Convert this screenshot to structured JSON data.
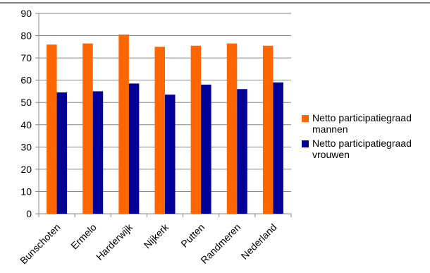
{
  "chart_data": {
    "type": "bar",
    "categories": [
      "Bunschoten",
      "Ermelo",
      "Harderwijk",
      "Nijkerk",
      "Putten",
      "Randmeren",
      "Nederland"
    ],
    "series": [
      {
        "name": "Netto participatiegraad mannen",
        "name_lines": [
          "Netto participatiegraad",
          "mannen"
        ],
        "color": "#FF6600",
        "values": [
          76,
          76.5,
          80.5,
          75,
          75.5,
          76.5,
          75.5
        ]
      },
      {
        "name": "Netto participatiegraad vrouwen",
        "name_lines": [
          "Netto participatiegraad",
          "vrouwen"
        ],
        "color": "#000099",
        "values": [
          54.5,
          55,
          58.5,
          53.5,
          58,
          56,
          59
        ]
      }
    ],
    "ylim": [
      0,
      90
    ],
    "yticks": [
      0,
      10,
      20,
      30,
      40,
      50,
      60,
      70,
      80,
      90
    ],
    "grid": true,
    "legend": "right"
  }
}
